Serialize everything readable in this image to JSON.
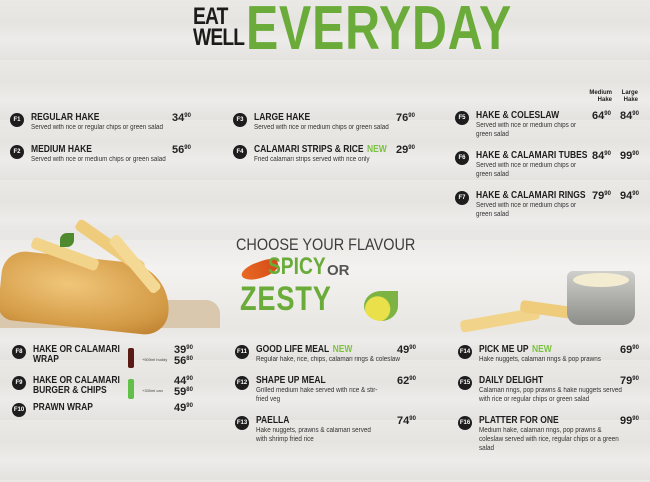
{
  "header": {
    "eat_well_line1": "EAT",
    "eat_well_line2": "WELL",
    "everyday": "EVERYDAY"
  },
  "flavour": {
    "heading": "CHOOSE YOUR FLAVOUR",
    "spicy": "SPICY",
    "or": "OR",
    "zesty": "ZESTY"
  },
  "column_headers": {
    "medium": "Medium Hake",
    "large": "Large Hake"
  },
  "colors": {
    "brand_green": "#6aab3a",
    "new_badge": "#7cc242",
    "badge": "#1d1d1d"
  },
  "items": [
    {
      "code": "F1",
      "title": "REGULAR HAKE",
      "new": "",
      "desc": "Served with rice or regular chips or green salad",
      "prices": [
        {
          "whole": "34",
          "cents": "90"
        }
      ]
    },
    {
      "code": "F2",
      "title": "MEDIUM HAKE",
      "new": "",
      "desc": "Served with rice or medium chips or green salad",
      "prices": [
        {
          "whole": "56",
          "cents": "90"
        }
      ]
    },
    {
      "code": "F3",
      "title": "LARGE HAKE",
      "new": "",
      "desc": "Served with rice or medium chips or green salad",
      "prices": [
        {
          "whole": "76",
          "cents": "90"
        }
      ]
    },
    {
      "code": "F4",
      "title": "CALAMARI STRIPS & RICE",
      "new": "NEW",
      "desc": "Fried calamari strips served with rice only",
      "prices": [
        {
          "whole": "29",
          "cents": "90"
        }
      ]
    },
    {
      "code": "F5",
      "title": "HAKE & COLESLAW",
      "new": "",
      "desc": "Served with rice or medium chips or green salad",
      "prices": [
        {
          "whole": "64",
          "cents": "90"
        },
        {
          "whole": "84",
          "cents": "90"
        }
      ]
    },
    {
      "code": "F6",
      "title": "HAKE & CALAMARI TUBES",
      "new": "",
      "desc": "Served with rice or medium chips or green salad",
      "prices": [
        {
          "whole": "84",
          "cents": "90"
        },
        {
          "whole": "99",
          "cents": "90"
        }
      ]
    },
    {
      "code": "F7",
      "title": "HAKE & CALAMARI RINGS",
      "new": "",
      "desc": "Served with rice or medium chips or green salad",
      "prices": [
        {
          "whole": "79",
          "cents": "90"
        },
        {
          "whole": "94",
          "cents": "90"
        }
      ]
    },
    {
      "code": "F8",
      "title": "HAKE OR CALAMARI WRAP",
      "new": "",
      "desc": "",
      "prices": [
        {
          "whole": "39",
          "cents": "90"
        },
        {
          "whole": "56",
          "cents": "80"
        }
      ],
      "drink": "+500ml buddy"
    },
    {
      "code": "F9",
      "title": "HAKE OR CALAMARI BURGER & CHIPS",
      "new": "",
      "desc": "",
      "prices": [
        {
          "whole": "44",
          "cents": "90"
        },
        {
          "whole": "59",
          "cents": "80"
        }
      ],
      "drink": "+330ml can"
    },
    {
      "code": "F10",
      "title": "PRAWN WRAP",
      "new": "",
      "desc": "",
      "prices": [
        {
          "whole": "49",
          "cents": "90"
        }
      ]
    },
    {
      "code": "F11",
      "title": "GOOD LIFE MEAL",
      "new": "NEW",
      "desc": "Regular hake, rice, chips, calamari rings & coleslaw",
      "prices": [
        {
          "whole": "49",
          "cents": "90"
        }
      ]
    },
    {
      "code": "F12",
      "title": "SHAPE UP MEAL",
      "new": "",
      "desc": "Grilled medium hake served with rice & stir-fried veg",
      "prices": [
        {
          "whole": "62",
          "cents": "90"
        }
      ]
    },
    {
      "code": "F13",
      "title": "PAELLA",
      "new": "",
      "desc": "Hake nuggets, prawns & calamari served with shrimp fried rice",
      "prices": [
        {
          "whole": "74",
          "cents": "90"
        }
      ]
    },
    {
      "code": "F14",
      "title": "PICK ME UP",
      "new": "NEW",
      "desc": "Hake nuggets, calamari rings & pop prawns",
      "prices": [
        {
          "whole": "69",
          "cents": "90"
        }
      ]
    },
    {
      "code": "F15",
      "title": "DAILY DELIGHT",
      "new": "",
      "desc": "Calamari rings, pop prawns & hake nuggets served with rice or regular chips or green salad",
      "prices": [
        {
          "whole": "79",
          "cents": "90"
        }
      ]
    },
    {
      "code": "F16",
      "title": "PLATTER FOR ONE",
      "new": "",
      "desc": "Medium hake, calamari rings, pop prawns & coleslaw served with rice, regular chips or a green salad",
      "prices": [
        {
          "whole": "99",
          "cents": "90"
        }
      ]
    }
  ]
}
